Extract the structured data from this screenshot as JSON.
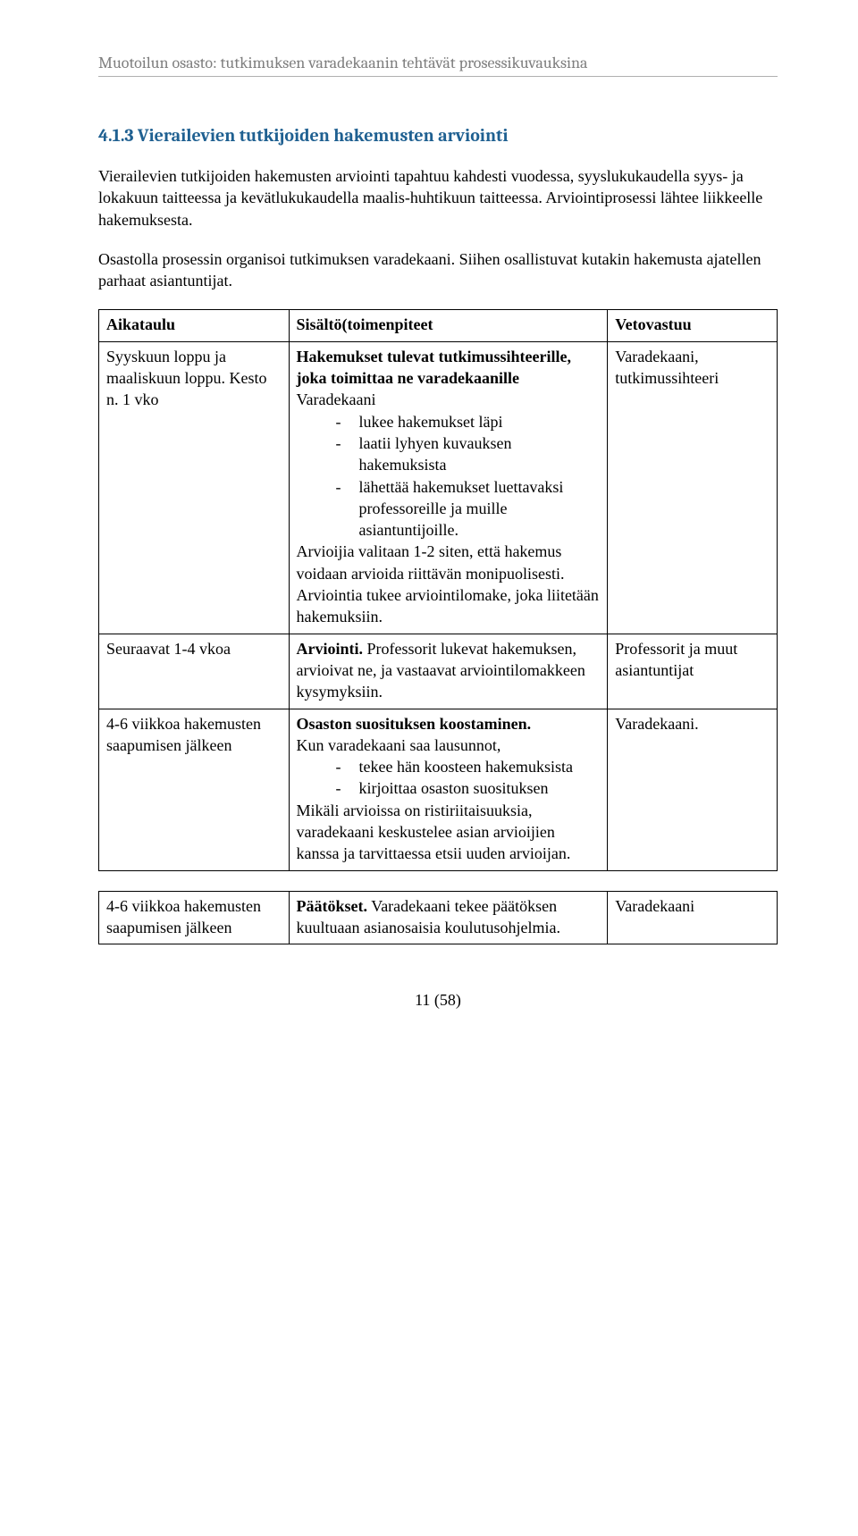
{
  "header": "Muotoilun osasto: tutkimuksen varadekaanin tehtävät prosessikuvauksina",
  "section_heading": "4.1.3 Vierailevien tutkijoiden hakemusten arviointi",
  "para1": "Vierailevien tutkijoiden hakemusten arviointi tapahtuu kahdesti vuodessa, syyslukukaudella syys- ja lokakuun taitteessa ja kevätlukukaudella maalis-huhtikuun taitteessa. Arviointiprosessi lähtee liikkeelle hakemuksesta.",
  "para2": "Osastolla prosessin organisoi tutkimuksen varadekaani. Siihen osallistuvat kutakin hakemusta ajatellen parhaat asiantuntijat.",
  "table1": {
    "head": {
      "c0": "Aikataulu",
      "c1": "Sisältö(toimenpiteet",
      "c2": "Vetovastuu"
    },
    "row1": {
      "c0": "Syyskuun loppu ja maaliskuun loppu. Kesto n. 1 vko",
      "c1_lead_bold": "Hakemukset tulevat tutkimussihteerille, joka toimittaa ne varadekaanille",
      "c1_varadekaani": "Varadekaani",
      "c1_bullets": [
        "lukee hakemukset läpi",
        "laatii lyhyen kuvauksen hakemuksista",
        "lähettää hakemukset luettavaksi professoreille ja muille asiantuntijoille."
      ],
      "c1_after": "Arvioijia valitaan 1-2 siten, että hakemus voidaan arvioida riittävän monipuolisesti. Arviointia tukee arviointilomake, joka liitetään hakemuksiin.",
      "c2": "Varadekaani, tutkimussihteeri"
    },
    "row2": {
      "c0": "Seuraavat 1-4 vkoa",
      "c1_bold": "Arviointi.",
      "c1_rest": " Professorit lukevat hakemuksen, arvioivat ne, ja vastaavat arviointilomakkeen kysymyksiin.",
      "c2": "Professorit ja muut asiantuntijat"
    },
    "row3": {
      "c0": "4-6 viikkoa hakemusten saapumisen jälkeen",
      "c1_bold": "Osaston suosituksen koostaminen.",
      "c1_intro": "Kun varadekaani saa lausunnot,",
      "c1_bullets": [
        "tekee hän koosteen hakemuksista",
        "kirjoittaa osaston suosituksen"
      ],
      "c1_after": "Mikäli arvioissa on ristiriitaisuuksia, varadekaani keskustelee asian arvioijien kanssa ja tarvittaessa etsii uuden arvioijan.",
      "c2": "Varadekaani."
    }
  },
  "table2": {
    "row1": {
      "c0": "4-6 viikkoa hakemusten saapumisen jälkeen",
      "c1_bold": "Päätökset.",
      "c1_rest": " Varadekaani tekee päätöksen kuultuaan asianosaisia koulutusohjelmia.",
      "c2": "Varadekaani"
    }
  },
  "page_number": "11 (58)"
}
